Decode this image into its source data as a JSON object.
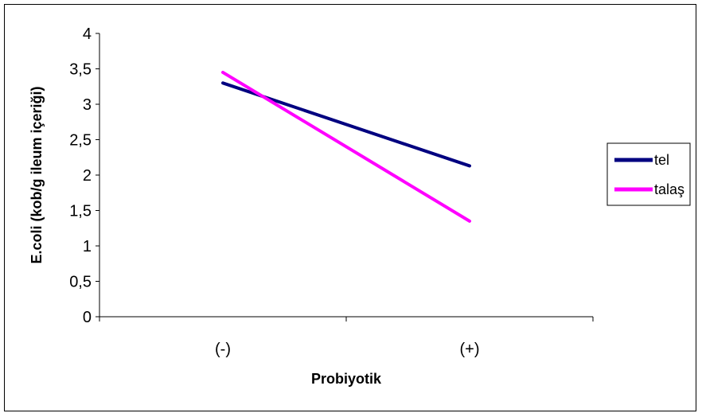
{
  "chart_data": {
    "type": "line",
    "categories": [
      "(-)",
      "(+)"
    ],
    "series": [
      {
        "name": "tel",
        "values": [
          3.3,
          2.13
        ],
        "color": "#000080"
      },
      {
        "name": "talaş",
        "values": [
          3.45,
          1.35
        ],
        "color": "#ff00ff"
      }
    ],
    "xlabel": "Probiyotik",
    "ylabel": "E.coli (kob/g ileum içeriği)",
    "ylim": [
      0,
      4
    ],
    "yticks": [
      "0",
      "0,5",
      "1",
      "1,5",
      "2",
      "2,5",
      "3",
      "3,5",
      "4"
    ],
    "grid": false,
    "legend_position": "right"
  }
}
